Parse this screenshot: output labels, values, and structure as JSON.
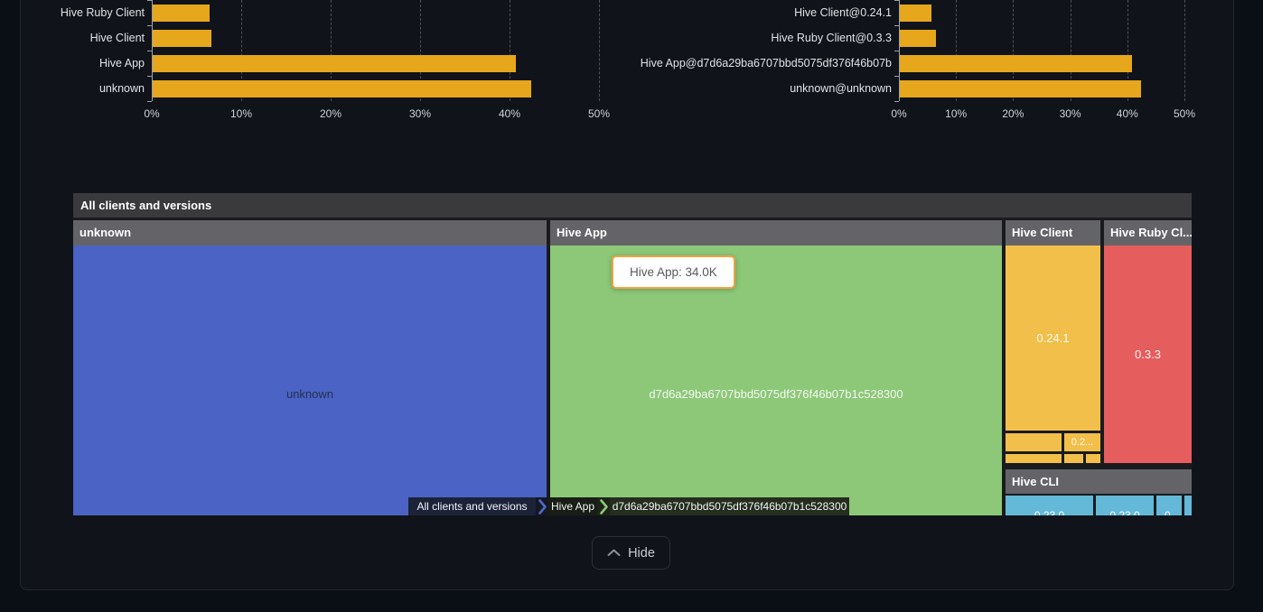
{
  "ui": {
    "hide_label": "Hide"
  },
  "colors": {
    "bar_amber": "#e6a71d",
    "treemap_blue": "#4a63c4",
    "treemap_green": "#8cc878",
    "treemap_orange": "#f2c04a",
    "treemap_red": "#e55d5d",
    "treemap_cyan": "#64b9d9",
    "tooltip_border": "#f0a23e"
  },
  "chart_data": [
    {
      "type": "bar",
      "orientation": "horizontal",
      "title": "",
      "categories": [
        "Hive Ruby Client",
        "Hive Client",
        "Hive App",
        "unknown"
      ],
      "values": [
        6.4,
        6.6,
        40.6,
        42.3
      ],
      "unit": "%",
      "x_ticks": [
        "0%",
        "10%",
        "20%",
        "30%",
        "40%",
        "50%"
      ],
      "xlim": [
        0,
        50
      ],
      "grid": "dashed-vertical",
      "bar_color": "#e6a71d"
    },
    {
      "type": "bar",
      "orientation": "horizontal",
      "title": "",
      "categories": [
        "Hive Client@0.24.1",
        "Hive Ruby Client@0.3.3",
        "Hive App@d7d6a29ba6707bbd5075df376f46b07b",
        "unknown@unknown"
      ],
      "values": [
        5.6,
        6.3,
        40.7,
        42.3
      ],
      "unit": "%",
      "x_ticks": [
        "0%",
        "10%",
        "20%",
        "30%",
        "40%",
        "50%"
      ],
      "xlim": [
        0,
        50
      ],
      "grid": "dashed-vertical",
      "bar_color": "#e6a71d"
    },
    {
      "type": "treemap",
      "title": "All clients and versions",
      "tooltip": "Hive App: 34.0K",
      "breadcrumb": [
        "All clients and versions",
        "Hive App",
        "d7d6a29ba6707bbd5075df376f46b07b1c528300"
      ],
      "sections": [
        {
          "name": "unknown",
          "color": "#4a63c4",
          "children": [
            {
              "label": "unknown"
            }
          ]
        },
        {
          "name": "Hive App",
          "color": "#8cc878",
          "children": [
            {
              "label": "d7d6a29ba6707bbd5075df376f46b07b1c528300"
            }
          ]
        },
        {
          "name": "Hive Client",
          "color": "#f2c04a",
          "children": [
            {
              "label": "0.24.1"
            },
            {
              "label": "0.2..."
            }
          ]
        },
        {
          "name": "Hive Ruby Cl...",
          "color": "#e55d5d",
          "children": [
            {
              "label": "0.3.3"
            }
          ]
        },
        {
          "name": "Hive CLI",
          "color": "#64b9d9",
          "children": [
            {
              "label": "0.23.0"
            },
            {
              "label": "0.23.0"
            },
            {
              "label": "0."
            }
          ]
        }
      ]
    }
  ]
}
